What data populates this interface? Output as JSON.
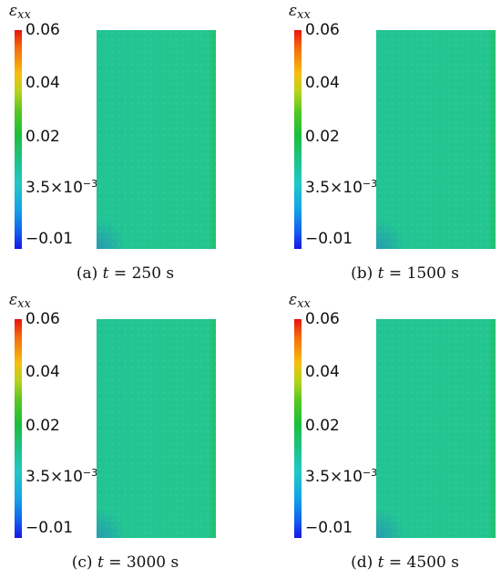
{
  "colorbar": {
    "symbol": "ε",
    "subscript": "xx",
    "ticks": [
      {
        "label": "0.06",
        "value": 0.06
      },
      {
        "label": "0.04",
        "value": 0.04
      },
      {
        "label": "0.02",
        "value": 0.02
      },
      {
        "mantissa": "3.5×10",
        "exponent": "−3",
        "value": 0.0035
      },
      {
        "label": "−0.01",
        "value": -0.01
      }
    ],
    "colors": {
      "max": "#e8130f",
      "mid": "#1bbf3b",
      "specimen": "#23c690",
      "min": "#1616e6"
    }
  },
  "panels": [
    {
      "letter": "(a)",
      "var": "t",
      "eq": "=",
      "value": "250",
      "unit": "s"
    },
    {
      "letter": "(b)",
      "var": "t",
      "eq": "=",
      "value": "1500",
      "unit": "s"
    },
    {
      "letter": "(c)",
      "var": "t",
      "eq": "=",
      "value": "3000",
      "unit": "s"
    },
    {
      "letter": "(d)",
      "var": "t",
      "eq": "=",
      "value": "4500",
      "unit": "s"
    }
  ]
}
